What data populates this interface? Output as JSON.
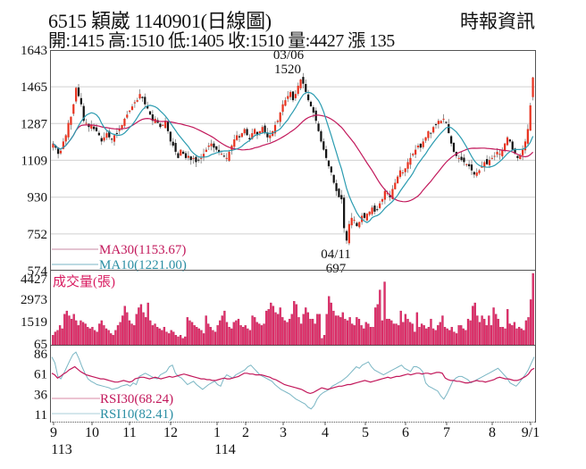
{
  "header": {
    "title": "6515  穎崴 1140901(日線圖)",
    "summary": "開:1415 高:1510 低:1405 收:1510 量:4427 漲 135",
    "brand": "時報資訊"
  },
  "colors": {
    "up": "#e8321e",
    "down": "#111111",
    "ma30": "#c2185b",
    "ma10": "#2a9bb0",
    "volume": "#e0306a",
    "rsi30": "#c2185b",
    "rsi10": "#7ab6c4",
    "grid": "#d0d0d0",
    "axis": "#555555"
  },
  "chart_data": [
    {
      "type": "candlestick",
      "title": "6515 穎崴 1140901(日線圖)",
      "ylabel": "",
      "yticks": [
        1643,
        1465,
        1287,
        1109,
        930,
        752,
        574
      ],
      "ylim": [
        574,
        1643
      ],
      "grid": true,
      "annotations": [
        {
          "label": "03/06",
          "value": "1520",
          "type": "high"
        },
        {
          "label": "04/11",
          "value": "697",
          "type": "low"
        }
      ],
      "legend": [
        {
          "name": "MA30",
          "value": "MA30(1153.67)"
        },
        {
          "name": "MA10",
          "value": "MA10(1221.00)"
        }
      ],
      "last_bar": {
        "open": 1415,
        "high": 1510,
        "low": 1405,
        "close": 1510,
        "volume": 4427,
        "change": 135
      },
      "close": [
        1190,
        1170,
        1140,
        1155,
        1200,
        1230,
        1290,
        1320,
        1380,
        1460,
        1420,
        1380,
        1300,
        1290,
        1270,
        1280,
        1260,
        1250,
        1230,
        1200,
        1220,
        1240,
        1220,
        1210,
        1230,
        1240,
        1260,
        1280,
        1310,
        1330,
        1350,
        1370,
        1390,
        1400,
        1430,
        1410,
        1380,
        1360,
        1330,
        1300,
        1310,
        1290,
        1270,
        1280,
        1300,
        1250,
        1200,
        1180,
        1150,
        1120,
        1160,
        1140,
        1120,
        1130,
        1110,
        1120,
        1100,
        1110,
        1120,
        1140,
        1160,
        1180,
        1190,
        1170,
        1160,
        1150,
        1140,
        1130,
        1120,
        1150,
        1180,
        1210,
        1230,
        1220,
        1240,
        1260,
        1230,
        1210,
        1240,
        1260,
        1230,
        1250,
        1270,
        1240,
        1220,
        1230,
        1250,
        1280,
        1300,
        1340,
        1380,
        1400,
        1420,
        1440,
        1400,
        1430,
        1470,
        1500,
        1480,
        1440,
        1400,
        1370,
        1340,
        1300,
        1250,
        1200,
        1160,
        1120,
        1080,
        1050,
        1000,
        960,
        930,
        920,
        780,
        720,
        800,
        830,
        820,
        790,
        810,
        840,
        830,
        850,
        860,
        880,
        860,
        870,
        900,
        920,
        960,
        950,
        930,
        970,
        1000,
        1030,
        1060,
        1050,
        1070,
        1100,
        1120,
        1140,
        1160,
        1180,
        1170,
        1200,
        1220,
        1250,
        1240,
        1270,
        1280,
        1300,
        1300,
        1310,
        1290,
        1240,
        1190,
        1150,
        1130,
        1120,
        1110,
        1100,
        1090,
        1080,
        1060,
        1040,
        1050,
        1060,
        1080,
        1100,
        1090,
        1110,
        1120,
        1130,
        1150,
        1140,
        1160,
        1190,
        1220,
        1200,
        1160,
        1140,
        1120,
        1130,
        1160,
        1200,
        1260,
        1375,
        1510
      ],
      "ma10_end": 1221.0,
      "ma30_end": 1153.67
    },
    {
      "type": "bar",
      "title": "成交量(張)",
      "yticks": [
        4427,
        2973,
        1519,
        65
      ],
      "ylim": [
        65,
        4427
      ],
      "volume": [
        600,
        800,
        900,
        1200,
        1000,
        1900,
        2100,
        1800,
        1600,
        1900,
        1500,
        1200,
        1500,
        1400,
        1300,
        1100,
        1000,
        1100,
        900,
        800,
        1300,
        1500,
        1200,
        1000,
        900,
        700,
        600,
        900,
        1200,
        1400,
        1800,
        2400,
        2000,
        1500,
        1300,
        1200,
        1900,
        2300,
        2500,
        2000,
        1700,
        2600,
        1500,
        1200,
        1300,
        1100,
        1000,
        900,
        1100,
        800,
        700,
        900,
        800,
        600,
        500,
        600,
        400,
        500,
        1700,
        1500,
        1400,
        1200,
        1100,
        1000,
        900,
        700,
        1800,
        1300,
        1100,
        900,
        800,
        1200,
        1500,
        1800,
        2100,
        1400,
        1100,
        1000,
        1400,
        1500,
        1600,
        1200,
        1100,
        1200,
        1000,
        900,
        1800,
        1700,
        1400,
        1300,
        1200,
        1300,
        2100,
        2200,
        2600,
        2400,
        2000,
        1900,
        2300,
        1700,
        1500,
        1400,
        1600,
        1900,
        2700,
        2500,
        1700,
        1300,
        1900,
        2300,
        2000,
        1600,
        1600,
        1300,
        1900,
        1900,
        400,
        600,
        1900,
        3000,
        2600,
        2100,
        1800,
        1800,
        1700,
        2000,
        1600,
        1500,
        1700,
        1300,
        1200,
        1700,
        1600,
        1200,
        1000,
        1400,
        1300,
        1100,
        1100,
        2300,
        2500,
        3400,
        1500,
        3900,
        1600,
        1600,
        1500,
        1300,
        1300,
        1200,
        2100,
        1400,
        1900,
        1600,
        1400,
        1300,
        800,
        2000,
        1100,
        1300,
        1200,
        1000,
        1100,
        1600,
        1000,
        900,
        1200,
        1400,
        1800,
        1100,
        1000,
        900,
        1100,
        800,
        700,
        1200,
        1200,
        1000,
        900,
        1600,
        1500,
        2400,
        2600,
        1800,
        1400,
        1800,
        1600,
        1200,
        1800,
        1200,
        2300,
        1900,
        1600,
        1100,
        1100,
        1000,
        2200,
        1300,
        1200,
        1400,
        1000,
        1100,
        1000,
        900,
        1500,
        1700,
        2800,
        4427
      ]
    },
    {
      "type": "line",
      "title": "RSI",
      "yticks": [
        86,
        61,
        36,
        11
      ],
      "ylim": [
        11,
        86
      ],
      "legend": [
        {
          "name": "RSI30",
          "value": "RSI30(68.24)"
        },
        {
          "name": "RSI10",
          "value": "RSI10(82.41)"
        }
      ],
      "rsi30": [
        62,
        60,
        56,
        58,
        61,
        63,
        66,
        68,
        70,
        67,
        64,
        62,
        60,
        59,
        58,
        57,
        56,
        55,
        55,
        54,
        53,
        52,
        51,
        51,
        52,
        53,
        52,
        51,
        52,
        55,
        56,
        57,
        57,
        56,
        55,
        56,
        57,
        56,
        55,
        56,
        57,
        58,
        57,
        58,
        59,
        60,
        61,
        60,
        59,
        58,
        57,
        56,
        55,
        55,
        54,
        54,
        53,
        53,
        54,
        55,
        56,
        55,
        55,
        56,
        57,
        58,
        60,
        62,
        62,
        61,
        61,
        60,
        60,
        60,
        59,
        58,
        57,
        55,
        54,
        52,
        50,
        48,
        47,
        46,
        45,
        44,
        43,
        42,
        40,
        38,
        37,
        38,
        40,
        42,
        44,
        43,
        42,
        43,
        44,
        45,
        46,
        46,
        47,
        48,
        48,
        49,
        50,
        51,
        52,
        53,
        52,
        51,
        52,
        53,
        54,
        55,
        56,
        57,
        56,
        57,
        58,
        58,
        59,
        60,
        61,
        60,
        61,
        62,
        62,
        61,
        62,
        62,
        61,
        62,
        63,
        63,
        62,
        56,
        54,
        53,
        53,
        52,
        52,
        51,
        50,
        50,
        51,
        52,
        53,
        52,
        52,
        51,
        52,
        53,
        54,
        56,
        57,
        56,
        55,
        55,
        54,
        53,
        53,
        54,
        56,
        58,
        61,
        66,
        68
      ],
      "rsi10": [
        82,
        75,
        58,
        55,
        62,
        70,
        78,
        85,
        88,
        80,
        70,
        62,
        55,
        52,
        50,
        48,
        47,
        46,
        45,
        44,
        42,
        43,
        44,
        46,
        47,
        48,
        46,
        50,
        48,
        58,
        60,
        62,
        60,
        58,
        56,
        55,
        60,
        62,
        64,
        70,
        72,
        62,
        58,
        56,
        52,
        48,
        50,
        52,
        48,
        45,
        42,
        45,
        48,
        50,
        52,
        48,
        46,
        55,
        60,
        58,
        56,
        60,
        62,
        64,
        66,
        70,
        72,
        68,
        64,
        60,
        58,
        56,
        54,
        52,
        48,
        45,
        42,
        40,
        38,
        36,
        33,
        30,
        28,
        26,
        24,
        20,
        18,
        22,
        30,
        35,
        38,
        40,
        42,
        46,
        48,
        50,
        52,
        55,
        58,
        62,
        66,
        70,
        68,
        72,
        74,
        76,
        70,
        66,
        64,
        62,
        60,
        62,
        64,
        66,
        68,
        70,
        72,
        68,
        66,
        64,
        70,
        70,
        68,
        64,
        50,
        46,
        44,
        42,
        40,
        34,
        30,
        36,
        44,
        52,
        56,
        58,
        58,
        56,
        54,
        50,
        52,
        54,
        56,
        58,
        60,
        62,
        64,
        66,
        68,
        64,
        60,
        56,
        50,
        48,
        46,
        50,
        55,
        60,
        66,
        74,
        82
      ]
    }
  ],
  "x_axis": {
    "labels": [
      "9",
      "10",
      "11",
      "12",
      "1",
      "2",
      "3",
      "4",
      "5",
      "6",
      "7",
      "8",
      "9/1"
    ],
    "year_labels": [
      {
        "label": "113",
        "at": "9"
      },
      {
        "label": "114",
        "at": "1"
      }
    ]
  },
  "legend": {
    "ma30": "MA30(1153.67)",
    "ma10": "MA10(1221.00)",
    "volume_title": "成交量(張)",
    "rsi30": "RSI30(68.24)",
    "rsi10": "RSI10(82.41)"
  },
  "annotations": {
    "high_date": "03/06",
    "high_value": "1520",
    "low_date": "04/11",
    "low_value": "697"
  },
  "axis_labels": {
    "price": [
      "1643",
      "1465",
      "1287",
      "1109",
      "930",
      "752",
      "574"
    ],
    "volume": [
      "4427",
      "2973",
      "1519",
      "65"
    ],
    "rsi": [
      "86",
      "61",
      "36",
      "11"
    ]
  }
}
